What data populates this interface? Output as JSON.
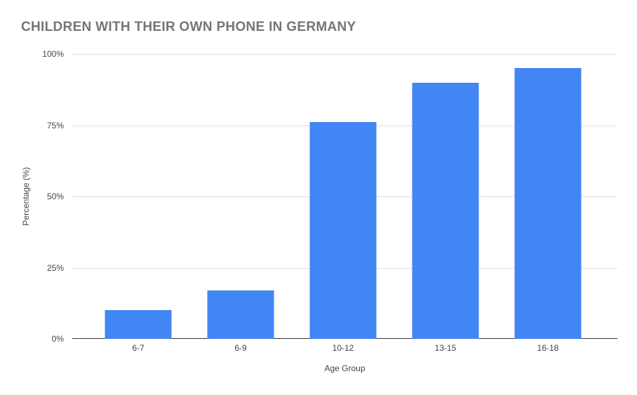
{
  "chart_data": {
    "type": "bar",
    "title": "CHILDREN WITH THEIR OWN PHONE IN GERMANY",
    "categories": [
      "6-7",
      "6-9",
      "10-12",
      "13-15",
      "16-18"
    ],
    "values": [
      10,
      17,
      76,
      90,
      95
    ],
    "xlabel": "Age Group",
    "ylabel": "Percentage (%)",
    "ylim": [
      0,
      100
    ],
    "ytick_values": [
      0,
      25,
      50,
      75,
      100
    ],
    "ytick_labels": [
      "0%",
      "25%",
      "50%",
      "75%",
      "100%"
    ],
    "grid": true,
    "legend": false,
    "colors": {
      "bar": "#4285f4",
      "title": "#757575",
      "gridline": "#e0e0e0",
      "axis_baseline": "#333333",
      "tick_label": "#444444",
      "background": "#ffffff"
    }
  }
}
